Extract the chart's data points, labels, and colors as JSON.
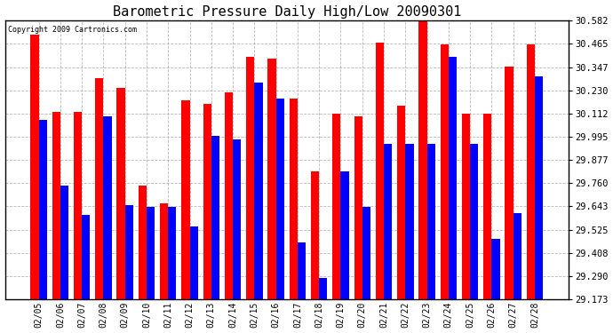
{
  "title": "Barometric Pressure Daily High/Low 20090301",
  "copyright": "Copyright 2009 Cartronics.com",
  "dates": [
    "02/05",
    "02/06",
    "02/07",
    "02/08",
    "02/09",
    "02/10",
    "02/11",
    "02/12",
    "02/13",
    "02/14",
    "02/15",
    "02/16",
    "02/17",
    "02/18",
    "02/19",
    "02/20",
    "02/21",
    "02/22",
    "02/23",
    "02/24",
    "02/25",
    "02/26",
    "02/27",
    "02/28"
  ],
  "highs": [
    30.51,
    30.12,
    30.12,
    30.29,
    30.24,
    29.75,
    29.66,
    30.18,
    30.16,
    30.22,
    30.4,
    30.39,
    30.19,
    29.82,
    30.11,
    30.1,
    30.47,
    30.15,
    30.6,
    30.46,
    30.11,
    30.11,
    30.35,
    30.46
  ],
  "lows": [
    30.08,
    29.75,
    29.6,
    30.1,
    29.65,
    29.64,
    29.64,
    29.54,
    30.0,
    29.98,
    30.27,
    30.19,
    29.46,
    29.28,
    29.82,
    29.64,
    29.96,
    29.96,
    29.96,
    30.4,
    29.96,
    29.48,
    29.61,
    30.3
  ],
  "ymin": 29.173,
  "ymax": 30.582,
  "yticks": [
    29.173,
    29.29,
    29.408,
    29.525,
    29.643,
    29.76,
    29.877,
    29.995,
    30.112,
    30.23,
    30.347,
    30.465,
    30.582
  ],
  "bar_color_high": "#ff0000",
  "bar_color_low": "#0000ff",
  "background_color": "#ffffff",
  "plot_bg_color": "#ffffff",
  "grid_color": "#999999",
  "title_fontsize": 11,
  "bar_width": 0.38
}
